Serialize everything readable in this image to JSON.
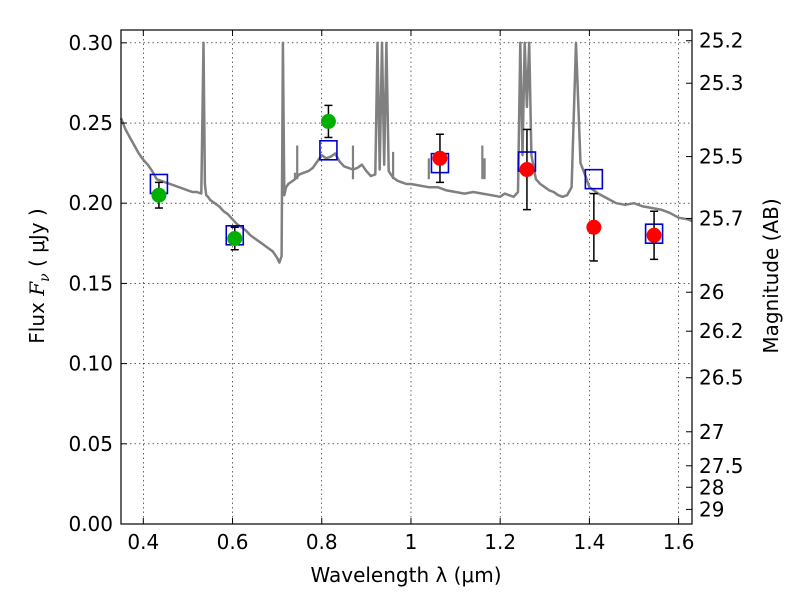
{
  "chart_data": {
    "type": "scatter",
    "xlabel": "Wavelength  λ (μm)",
    "ylabel": "Flux  F_ν  ( μJy )",
    "ylabel_parts": {
      "pre": "Flux  ",
      "var": "F",
      "sub": "ν",
      "post": "  ( μJy )"
    },
    "y2label": "Magnitude (AB)",
    "xlim": [
      0.35,
      1.63
    ],
    "ylim": [
      0.0,
      0.308
    ],
    "grid": true,
    "xticks": [
      0.4,
      0.6,
      0.8,
      1.0,
      1.2,
      1.4,
      1.6
    ],
    "xtick_labels": [
      "0.4",
      "0.6",
      "0.8",
      "1",
      "1.2",
      "1.4",
      "1.6"
    ],
    "yticks": [
      0.0,
      0.05,
      0.1,
      0.15,
      0.2,
      0.25,
      0.3
    ],
    "ytick_labels": [
      "0.00",
      "0.05",
      "0.10",
      "0.15",
      "0.20",
      "0.25",
      "0.30"
    ],
    "y2_ticks": [
      {
        "label": "25.2",
        "flux": 0.3013
      },
      {
        "label": "25.3",
        "flux": 0.2748
      },
      {
        "label": "25.5",
        "flux": 0.2291
      },
      {
        "label": "25.7",
        "flux": 0.1905
      },
      {
        "label": "26",
        "flux": 0.1445
      },
      {
        "label": "26.2",
        "flux": 0.1202
      },
      {
        "label": "26.5",
        "flux": 0.0912
      },
      {
        "label": "27",
        "flux": 0.0575
      },
      {
        "label": "27.5",
        "flux": 0.0363
      },
      {
        "label": "28",
        "flux": 0.0229
      },
      {
        "label": "29",
        "flux": 0.0091
      }
    ],
    "series": [
      {
        "kind": "model-spectrum",
        "color": "#808080",
        "x": [
          0.35,
          0.36,
          0.37,
          0.38,
          0.39,
          0.4,
          0.41,
          0.42,
          0.43,
          0.44,
          0.45,
          0.46,
          0.47,
          0.48,
          0.49,
          0.5,
          0.51,
          0.52,
          0.53,
          0.535,
          0.538,
          0.541,
          0.545,
          0.55,
          0.56,
          0.57,
          0.58,
          0.59,
          0.6,
          0.61,
          0.62,
          0.63,
          0.64,
          0.65,
          0.66,
          0.67,
          0.68,
          0.69,
          0.7,
          0.705,
          0.71,
          0.713,
          0.716,
          0.72,
          0.725,
          0.73,
          0.74,
          0.75,
          0.76,
          0.77,
          0.78,
          0.79,
          0.8,
          0.81,
          0.82,
          0.83,
          0.84,
          0.85,
          0.86,
          0.87,
          0.88,
          0.89,
          0.9,
          0.91,
          0.92,
          0.925,
          0.93,
          0.935,
          0.94,
          0.945,
          0.95,
          0.955,
          0.96,
          0.97,
          0.98,
          0.99,
          1.0,
          1.02,
          1.04,
          1.06,
          1.08,
          1.1,
          1.12,
          1.14,
          1.16,
          1.18,
          1.2,
          1.21,
          1.22,
          1.23,
          1.24,
          1.245,
          1.25,
          1.255,
          1.26,
          1.265,
          1.27,
          1.28,
          1.29,
          1.3,
          1.31,
          1.32,
          1.33,
          1.34,
          1.35,
          1.36,
          1.37,
          1.38,
          1.39,
          1.4,
          1.42,
          1.44,
          1.46,
          1.48,
          1.5,
          1.52,
          1.54,
          1.56,
          1.58,
          1.6,
          1.62,
          1.63
        ],
        "y": [
          0.253,
          0.246,
          0.241,
          0.236,
          0.231,
          0.227,
          0.224,
          0.22,
          0.215,
          0.214,
          0.213,
          0.212,
          0.211,
          0.21,
          0.209,
          0.208,
          0.207,
          0.207,
          0.206,
          0.3,
          0.212,
          0.205,
          0.204,
          0.202,
          0.2,
          0.198,
          0.195,
          0.193,
          0.19,
          0.187,
          0.185,
          0.183,
          0.18,
          0.178,
          0.176,
          0.174,
          0.172,
          0.17,
          0.166,
          0.163,
          0.167,
          0.3,
          0.205,
          0.21,
          0.212,
          0.213,
          0.215,
          0.218,
          0.219,
          0.22,
          0.222,
          0.226,
          0.23,
          0.228,
          0.229,
          0.231,
          0.226,
          0.223,
          0.222,
          0.221,
          0.222,
          0.224,
          0.22,
          0.217,
          0.218,
          0.3,
          0.221,
          0.3,
          0.224,
          0.3,
          0.22,
          0.218,
          0.216,
          0.214,
          0.213,
          0.212,
          0.212,
          0.211,
          0.21,
          0.21,
          0.208,
          0.207,
          0.206,
          0.207,
          0.206,
          0.205,
          0.204,
          0.206,
          0.205,
          0.204,
          0.207,
          0.3,
          0.23,
          0.3,
          0.26,
          0.3,
          0.23,
          0.215,
          0.212,
          0.21,
          0.208,
          0.207,
          0.205,
          0.204,
          0.205,
          0.21,
          0.3,
          0.225,
          0.218,
          0.21,
          0.206,
          0.203,
          0.2,
          0.199,
          0.2,
          0.198,
          0.197,
          0.196,
          0.194,
          0.191,
          0.19,
          0.189
        ],
        "spikes": [
          {
            "x": 0.74,
            "y": 0.219
          },
          {
            "x": 0.745,
            "y": 0.236
          },
          {
            "x": 0.87,
            "y": 0.236
          },
          {
            "x": 0.96,
            "y": 0.232
          },
          {
            "x": 1.04,
            "y": 0.228
          },
          {
            "x": 1.16,
            "y": 0.236
          },
          {
            "x": 1.165,
            "y": 0.228
          }
        ]
      },
      {
        "kind": "model-photometry",
        "color": "#0000cc",
        "x": [
          0.435,
          0.605,
          0.815,
          1.065,
          1.26,
          1.41,
          1.545
        ],
        "y": [
          0.212,
          0.18,
          0.233,
          0.225,
          0.226,
          0.215,
          0.181
        ]
      },
      {
        "kind": "observed-optical",
        "color": "#00b000",
        "x": [
          0.435,
          0.605,
          0.815
        ],
        "y": [
          0.205,
          0.178,
          0.251
        ],
        "err": [
          0.008,
          0.007,
          0.01
        ]
      },
      {
        "kind": "observed-nir",
        "color": "#ff0000",
        "x": [
          1.065,
          1.26,
          1.41,
          1.545
        ],
        "y": [
          0.228,
          0.221,
          0.185,
          0.18
        ],
        "err": [
          0.015,
          0.025,
          0.021,
          0.015
        ]
      }
    ]
  }
}
